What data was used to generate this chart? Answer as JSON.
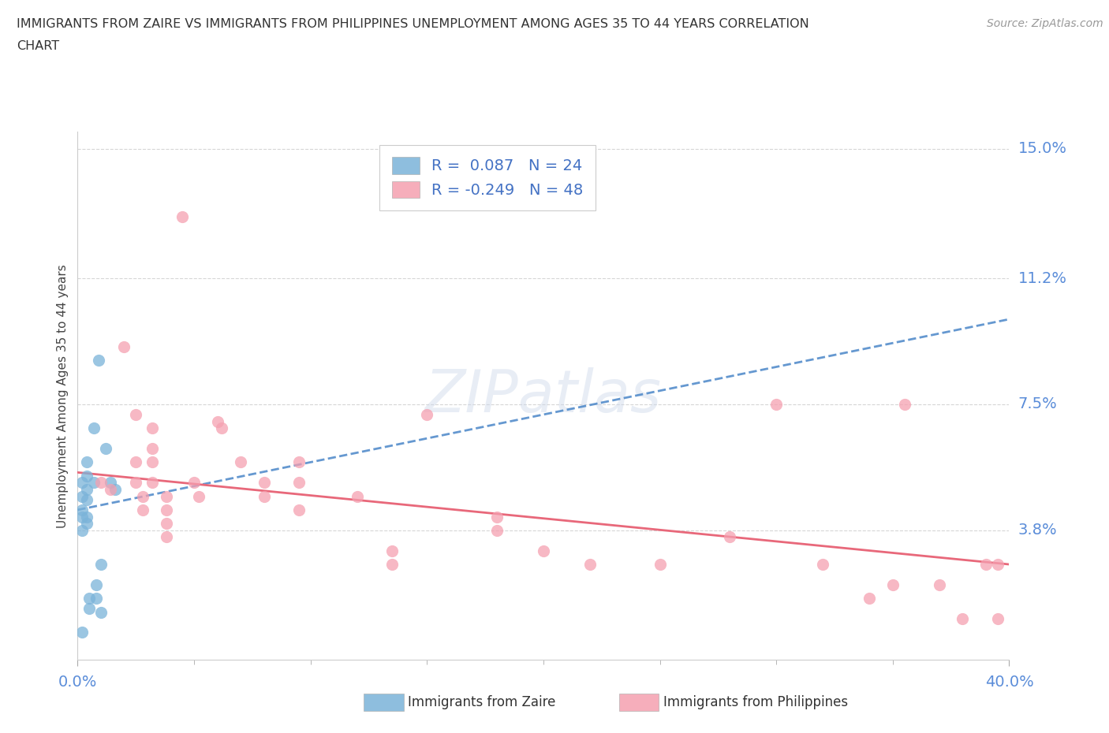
{
  "title_line1": "IMMIGRANTS FROM ZAIRE VS IMMIGRANTS FROM PHILIPPINES UNEMPLOYMENT AMONG AGES 35 TO 44 YEARS CORRELATION",
  "title_line2": "CHART",
  "source": "Source: ZipAtlas.com",
  "ylabel": "Unemployment Among Ages 35 to 44 years",
  "xlim": [
    0.0,
    0.4
  ],
  "ylim": [
    -0.02,
    0.155
  ],
  "ytick_vals": [
    0.038,
    0.075,
    0.112,
    0.15
  ],
  "ytick_labels": [
    "3.8%",
    "7.5%",
    "11.2%",
    "15.0%"
  ],
  "zaire_color": "#7ab3d9",
  "philippines_color": "#f5a0b0",
  "zaire_line_color": "#4a86c8",
  "philippines_line_color": "#e8687a",
  "background_color": "#ffffff",
  "watermark": "ZIPatlas",
  "zaire_points": [
    [
      0.002,
      0.052
    ],
    [
      0.002,
      0.048
    ],
    [
      0.002,
      0.044
    ],
    [
      0.002,
      0.042
    ],
    [
      0.004,
      0.058
    ],
    [
      0.004,
      0.054
    ],
    [
      0.004,
      0.05
    ],
    [
      0.004,
      0.047
    ],
    [
      0.004,
      0.042
    ],
    [
      0.004,
      0.04
    ],
    [
      0.007,
      0.068
    ],
    [
      0.007,
      0.052
    ],
    [
      0.009,
      0.088
    ],
    [
      0.012,
      0.062
    ],
    [
      0.014,
      0.052
    ],
    [
      0.016,
      0.05
    ],
    [
      0.005,
      0.018
    ],
    [
      0.005,
      0.015
    ],
    [
      0.008,
      0.022
    ],
    [
      0.008,
      0.018
    ],
    [
      0.01,
      0.014
    ],
    [
      0.01,
      0.028
    ],
    [
      0.002,
      0.008
    ],
    [
      0.002,
      0.038
    ]
  ],
  "philippines_points": [
    [
      0.01,
      0.052
    ],
    [
      0.014,
      0.05
    ],
    [
      0.02,
      0.092
    ],
    [
      0.025,
      0.072
    ],
    [
      0.025,
      0.058
    ],
    [
      0.025,
      0.052
    ],
    [
      0.028,
      0.048
    ],
    [
      0.028,
      0.044
    ],
    [
      0.032,
      0.068
    ],
    [
      0.032,
      0.062
    ],
    [
      0.032,
      0.058
    ],
    [
      0.032,
      0.052
    ],
    [
      0.038,
      0.048
    ],
    [
      0.038,
      0.044
    ],
    [
      0.038,
      0.04
    ],
    [
      0.038,
      0.036
    ],
    [
      0.045,
      0.13
    ],
    [
      0.05,
      0.052
    ],
    [
      0.052,
      0.048
    ],
    [
      0.06,
      0.07
    ],
    [
      0.062,
      0.068
    ],
    [
      0.07,
      0.058
    ],
    [
      0.08,
      0.052
    ],
    [
      0.08,
      0.048
    ],
    [
      0.095,
      0.058
    ],
    [
      0.095,
      0.052
    ],
    [
      0.095,
      0.044
    ],
    [
      0.12,
      0.048
    ],
    [
      0.135,
      0.032
    ],
    [
      0.135,
      0.028
    ],
    [
      0.15,
      0.072
    ],
    [
      0.18,
      0.042
    ],
    [
      0.18,
      0.038
    ],
    [
      0.2,
      0.032
    ],
    [
      0.22,
      0.028
    ],
    [
      0.25,
      0.028
    ],
    [
      0.28,
      0.036
    ],
    [
      0.3,
      0.075
    ],
    [
      0.32,
      0.028
    ],
    [
      0.34,
      0.018
    ],
    [
      0.35,
      0.022
    ],
    [
      0.355,
      0.075
    ],
    [
      0.37,
      0.022
    ],
    [
      0.38,
      0.012
    ],
    [
      0.39,
      0.028
    ],
    [
      0.395,
      0.012
    ],
    [
      0.395,
      0.028
    ]
  ],
  "zaire_trendline": [
    0.0,
    0.4,
    0.044,
    0.1
  ],
  "philippines_trendline": [
    0.0,
    0.4,
    0.055,
    0.028
  ]
}
